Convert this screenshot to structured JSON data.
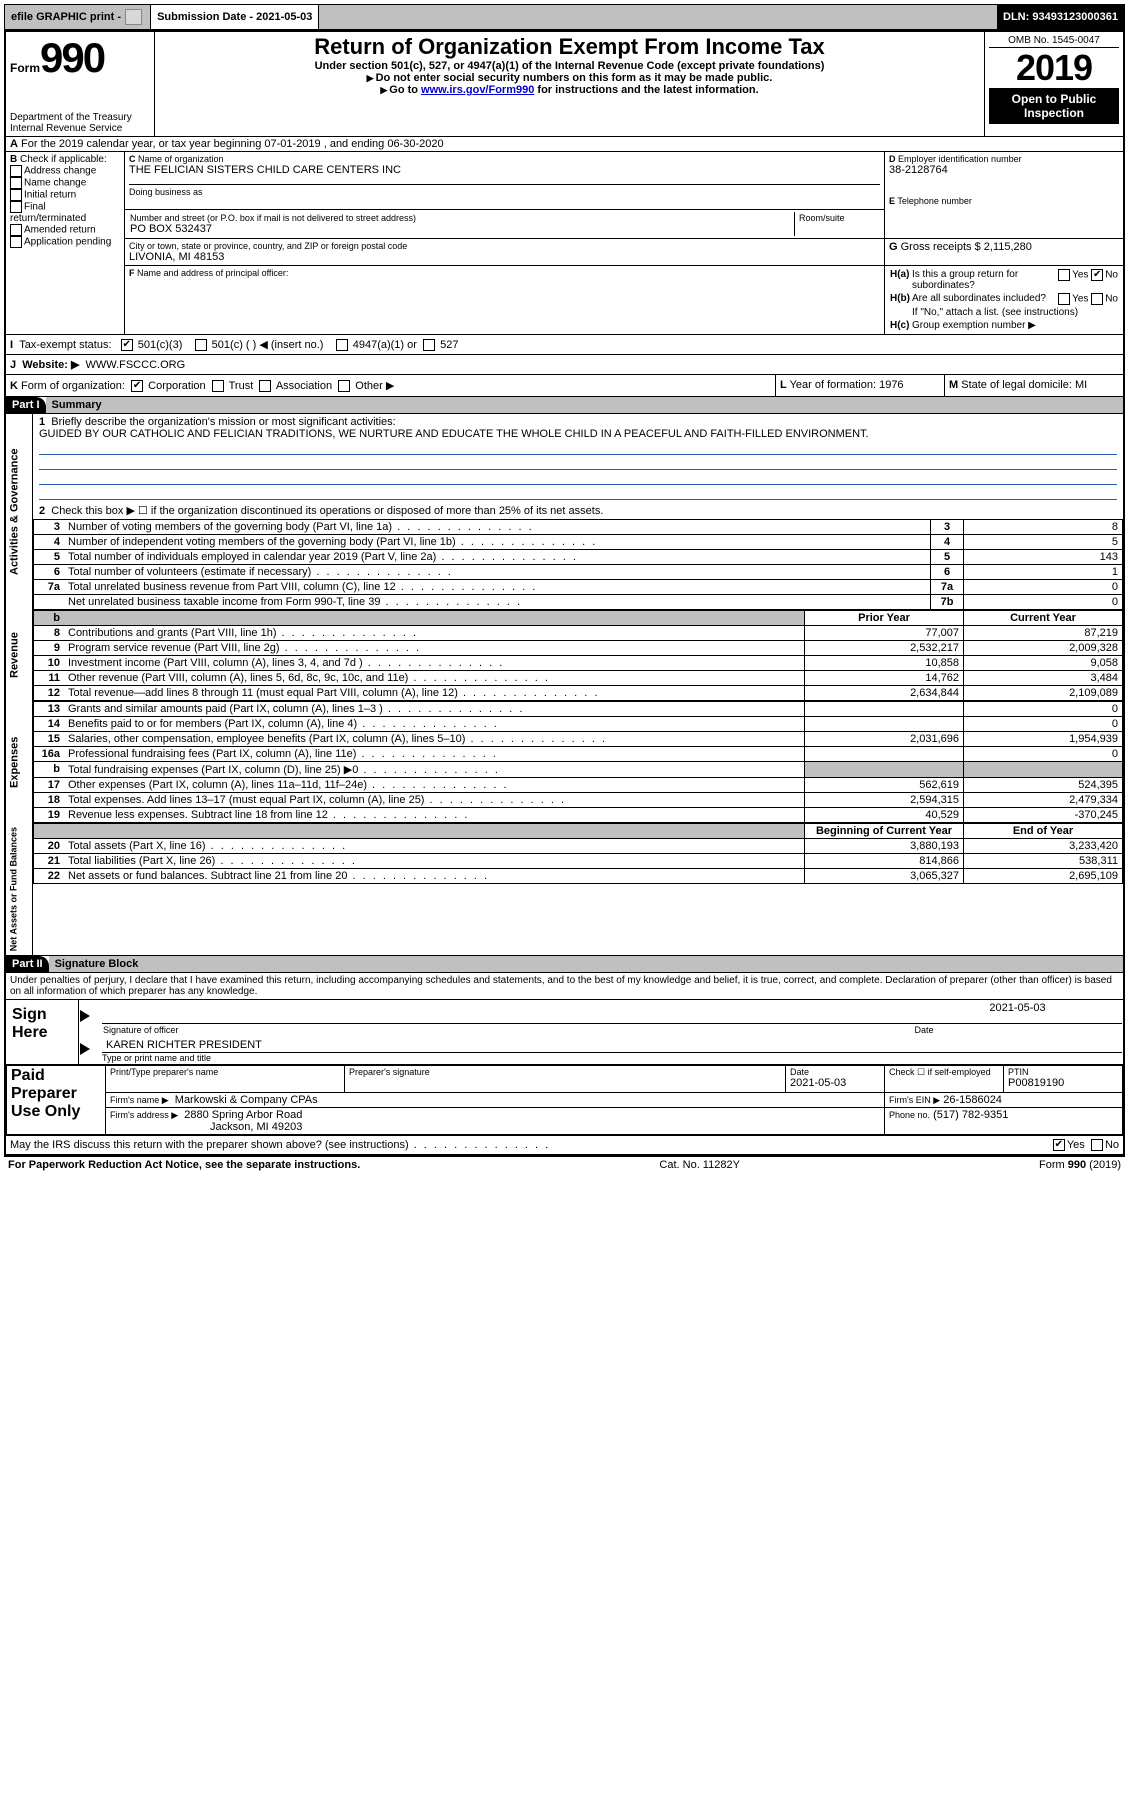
{
  "topbar": {
    "efile": "efile GRAPHIC print -",
    "sub_label": "Submission Date - 2021-05-03",
    "dln": "DLN: 93493123000361"
  },
  "header": {
    "form_word": "Form",
    "form_number": "990",
    "dept": "Department of the Treasury\nInternal Revenue Service",
    "title": "Return of Organization Exempt From Income Tax",
    "sub1": "Under section 501(c), 527, or 4947(a)(1) of the Internal Revenue Code (except private foundations)",
    "sub2": "Do not enter social security numbers on this form as it may be made public.",
    "sub3_pre": "Go to ",
    "sub3_link": "www.irs.gov/Form990",
    "sub3_post": " for instructions and the latest information.",
    "omb": "OMB No. 1545-0047",
    "year": "2019",
    "open": "Open to Public Inspection"
  },
  "period": {
    "line": "For the 2019 calendar year, or tax year beginning 07-01-2019     , and ending 06-30-2020"
  },
  "boxB": {
    "title": "Check if applicable:",
    "items": [
      "Address change",
      "Name change",
      "Initial return",
      "Final return/terminated",
      "Amended return",
      "Application pending"
    ]
  },
  "boxC": {
    "label": "Name of organization",
    "name": "THE FELICIAN SISTERS CHILD CARE CENTERS INC",
    "dba_label": "Doing business as",
    "street_label": "Number and street (or P.O. box if mail is not delivered to street address)",
    "room_label": "Room/suite",
    "street": "PO BOX 532437",
    "city_label": "City or town, state or province, country, and ZIP or foreign postal code",
    "city": "LIVONIA, MI  48153"
  },
  "boxD": {
    "label": "Employer identification number",
    "value": "38-2128764"
  },
  "boxE": {
    "label": "Telephone number",
    "value": ""
  },
  "boxG": {
    "label": "Gross receipts $",
    "value": "2,115,280"
  },
  "boxF": {
    "label": "Name and address of principal officer:"
  },
  "boxH": {
    "a": "Is this a group return for subordinates?",
    "b": "Are all subordinates included?",
    "b_note": "If \"No,\" attach a list. (see instructions)",
    "c": "Group exemption number ▶",
    "yes": "Yes",
    "no": "No"
  },
  "boxI": {
    "label": "Tax-exempt status:",
    "c3": "501(c)(3)",
    "cx": "501(c) (   ) ◀ (insert no.)",
    "a1": "4947(a)(1) or",
    "s527": "527"
  },
  "boxJ": {
    "label": "Website: ▶",
    "value": "WWW.FSCCC.ORG"
  },
  "boxK": {
    "label": "Form of organization:",
    "corp": "Corporation",
    "trust": "Trust",
    "assoc": "Association",
    "other": "Other ▶"
  },
  "boxL": {
    "label": "Year of formation:",
    "value": "1976"
  },
  "boxM": {
    "label": "State of legal domicile:",
    "value": "MI"
  },
  "part1": {
    "name": "Part I",
    "title": "Summary",
    "q1": "Briefly describe the organization's mission or most significant activities:",
    "mission": "GUIDED BY OUR CATHOLIC AND FELICIAN TRADITIONS, WE NURTURE AND EDUCATE THE WHOLE CHILD IN A PEACEFUL AND FAITH-FILLED ENVIRONMENT.",
    "q2": "Check this box ▶ ☐ if the organization discontinued its operations or disposed of more than 25% of its net assets.",
    "col_prior": "Prior Year",
    "col_current": "Current Year",
    "col_beg": "Beginning of Current Year",
    "col_end": "End of Year",
    "rows_gov": [
      {
        "n": "3",
        "t": "Number of voting members of the governing body (Part VI, line 1a)",
        "c": "3",
        "v": "8"
      },
      {
        "n": "4",
        "t": "Number of independent voting members of the governing body (Part VI, line 1b)",
        "c": "4",
        "v": "5"
      },
      {
        "n": "5",
        "t": "Total number of individuals employed in calendar year 2019 (Part V, line 2a)",
        "c": "5",
        "v": "143"
      },
      {
        "n": "6",
        "t": "Total number of volunteers (estimate if necessary)",
        "c": "6",
        "v": "1"
      },
      {
        "n": "7a",
        "t": "Total unrelated business revenue from Part VIII, column (C), line 12",
        "c": "7a",
        "v": "0"
      },
      {
        "n": "",
        "t": "Net unrelated business taxable income from Form 990-T, line 39",
        "c": "7b",
        "v": "0"
      }
    ],
    "rows_rev": [
      {
        "n": "8",
        "t": "Contributions and grants (Part VIII, line 1h)",
        "p": "77,007",
        "c": "87,219"
      },
      {
        "n": "9",
        "t": "Program service revenue (Part VIII, line 2g)",
        "p": "2,532,217",
        "c": "2,009,328"
      },
      {
        "n": "10",
        "t": "Investment income (Part VIII, column (A), lines 3, 4, and 7d )",
        "p": "10,858",
        "c": "9,058"
      },
      {
        "n": "11",
        "t": "Other revenue (Part VIII, column (A), lines 5, 6d, 8c, 9c, 10c, and 11e)",
        "p": "14,762",
        "c": "3,484"
      },
      {
        "n": "12",
        "t": "Total revenue—add lines 8 through 11 (must equal Part VIII, column (A), line 12)",
        "p": "2,634,844",
        "c": "2,109,089"
      }
    ],
    "rows_exp": [
      {
        "n": "13",
        "t": "Grants and similar amounts paid (Part IX, column (A), lines 1–3 )",
        "p": "",
        "c": "0"
      },
      {
        "n": "14",
        "t": "Benefits paid to or for members (Part IX, column (A), line 4)",
        "p": "",
        "c": "0"
      },
      {
        "n": "15",
        "t": "Salaries, other compensation, employee benefits (Part IX, column (A), lines 5–10)",
        "p": "2,031,696",
        "c": "1,954,939"
      },
      {
        "n": "16a",
        "t": "Professional fundraising fees (Part IX, column (A), line 11e)",
        "p": "",
        "c": "0"
      },
      {
        "n": "b",
        "t": "Total fundraising expenses (Part IX, column (D), line 25) ▶0",
        "p": "SHADE",
        "c": "SHADE"
      },
      {
        "n": "17",
        "t": "Other expenses (Part IX, column (A), lines 11a–11d, 11f–24e)",
        "p": "562,619",
        "c": "524,395"
      },
      {
        "n": "18",
        "t": "Total expenses. Add lines 13–17 (must equal Part IX, column (A), line 25)",
        "p": "2,594,315",
        "c": "2,479,334"
      },
      {
        "n": "19",
        "t": "Revenue less expenses. Subtract line 18 from line 12",
        "p": "40,529",
        "c": "-370,245"
      }
    ],
    "rows_net": [
      {
        "n": "20",
        "t": "Total assets (Part X, line 16)",
        "p": "3,880,193",
        "c": "3,233,420"
      },
      {
        "n": "21",
        "t": "Total liabilities (Part X, line 26)",
        "p": "814,866",
        "c": "538,311"
      },
      {
        "n": "22",
        "t": "Net assets or fund balances. Subtract line 21 from line 20",
        "p": "3,065,327",
        "c": "2,695,109"
      }
    ],
    "side_gov": "Activities & Governance",
    "side_rev": "Revenue",
    "side_exp": "Expenses",
    "side_net": "Net Assets or\nFund Balances"
  },
  "part2": {
    "name": "Part II",
    "title": "Signature Block",
    "decl": "Under penalties of perjury, I declare that I have examined this return, including accompanying schedules and statements, and to the best of my knowledge and belief, it is true, correct, and complete. Declaration of preparer (other than officer) is based on all information of which preparer has any knowledge.",
    "sign_here": "Sign Here",
    "sig_officer": "Signature of officer",
    "sig_date": "Date",
    "sig_date_v": "2021-05-03",
    "officer_name": "KAREN RICHTER  PRESIDENT",
    "officer_title": "Type or print name and title",
    "paid": "Paid Preparer Use Only",
    "prep_name_l": "Print/Type preparer's name",
    "prep_sig_l": "Preparer's signature",
    "prep_date_l": "Date",
    "prep_date_v": "2021-05-03",
    "prep_check": "Check ☐ if self-employed",
    "ptin_l": "PTIN",
    "ptin_v": "P00819190",
    "firm_name_l": "Firm's name    ▶",
    "firm_name_v": "Markowski & Company CPAs",
    "firm_ein_l": "Firm's EIN ▶",
    "firm_ein_v": "26-1586024",
    "firm_addr_l": "Firm's address ▶",
    "firm_addr_v1": "2880 Spring Arbor Road",
    "firm_addr_v2": "Jackson, MI  49203",
    "firm_phone_l": "Phone no.",
    "firm_phone_v": "(517) 782-9351",
    "discuss": "May the IRS discuss this return with the preparer shown above? (see instructions)"
  },
  "footer": {
    "left": "For Paperwork Reduction Act Notice, see the separate instructions.",
    "mid": "Cat. No. 11282Y",
    "right": "Form 990 (2019)"
  }
}
